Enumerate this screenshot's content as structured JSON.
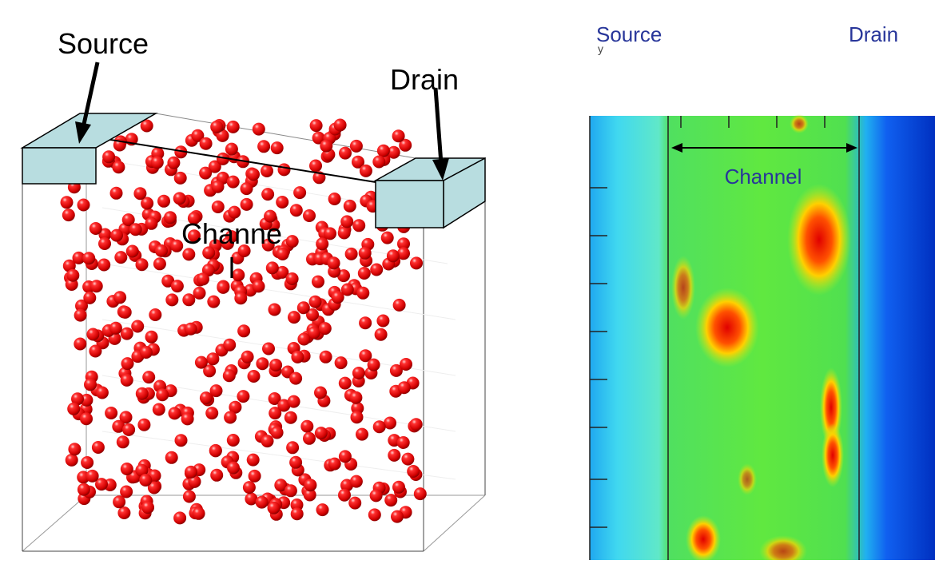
{
  "left_panel": {
    "source_label": "Source",
    "drain_label": "Drain",
    "channel_label_lines": [
      "Channe",
      "l"
    ]
  },
  "right_panel": {
    "source_label": "Source",
    "drain_label": "Drain",
    "channel_label": "Channel",
    "axis_label": "y"
  }
}
